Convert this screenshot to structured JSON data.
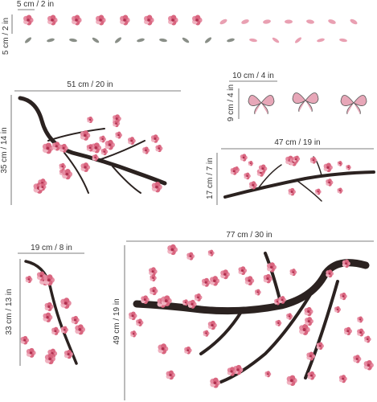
{
  "pieces": [
    {
      "width": "5 cm / 2 in",
      "height": "5 cm / 2 in"
    },
    {
      "width": "51 cm / 20 in",
      "height": "35 cm / 14 in"
    },
    {
      "width": "10 cm / 4 in",
      "height": "9 cm / 4 in"
    },
    {
      "width": "47 cm / 19 in",
      "height": "17 cm / 7 in"
    },
    {
      "width": "19 cm / 8 in",
      "height": "33 cm / 13 in"
    },
    {
      "width": "77 cm / 30 in",
      "height": "49 cm / 19 in"
    }
  ]
}
